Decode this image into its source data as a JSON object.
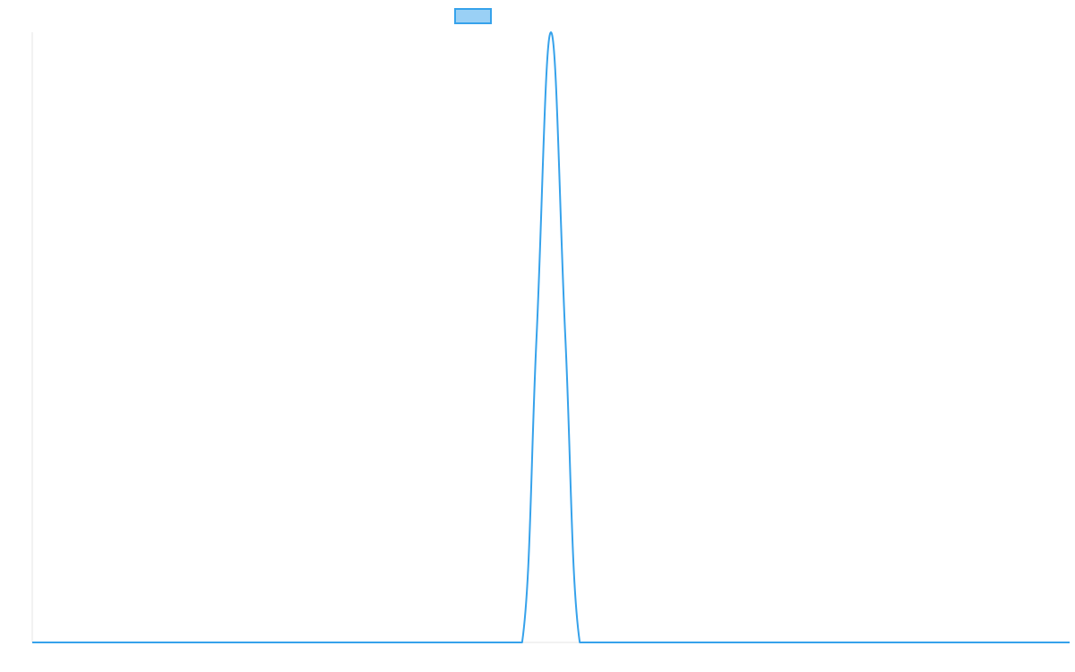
{
  "chart_data": {
    "type": "line",
    "title": "",
    "xlabel": "",
    "ylabel": "",
    "x": [
      0,
      16,
      17,
      17.5,
      18,
      18.5,
      19,
      20,
      36
    ],
    "series": [
      {
        "name": "",
        "values": [
          0,
          0,
          0,
          0.5,
          1,
          0.5,
          0,
          0,
          0
        ]
      }
    ],
    "xlim": [
      0,
      36
    ],
    "ylim": [
      0,
      1
    ],
    "grid": false,
    "legend": {
      "placement": "top-center",
      "swatch_fill": "#9ad0f5",
      "swatch_stroke": "#36a2eb"
    },
    "colors": {
      "line": "#36a2eb",
      "axis": "#e6e6e6"
    }
  }
}
